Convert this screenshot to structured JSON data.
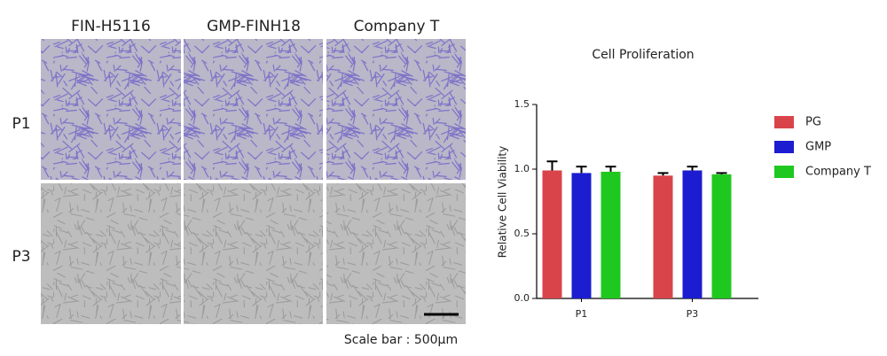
{
  "micrographs": {
    "columns": [
      "FIN-H5116",
      "GMP-FINH18",
      "Company T"
    ],
    "rows": [
      "P1",
      "P3"
    ],
    "scale_bar": "Scale bar : 500μm"
  },
  "chart_data": {
    "type": "bar",
    "title": "Cell Proliferation",
    "y_label": "Relative Cell Viability",
    "categories": [
      "P1",
      "P3"
    ],
    "series": [
      {
        "name": "PG",
        "color": "#d9444a",
        "values": [
          0.99,
          0.95
        ],
        "errors": [
          0.07,
          0.02
        ]
      },
      {
        "name": "GMP",
        "color": "#1c1cd0",
        "values": [
          0.97,
          0.99
        ],
        "errors": [
          0.05,
          0.03
        ]
      },
      {
        "name": "Company T",
        "color": "#1fc81f",
        "values": [
          0.98,
          0.96
        ],
        "errors": [
          0.04,
          0.01
        ]
      }
    ],
    "ylim": [
      0,
      1.5
    ],
    "yticks": [
      {
        "value": 0,
        "label": "0.0"
      },
      0.5,
      {
        "value": 1,
        "label": "1.0"
      },
      1.5
    ],
    "legend": "right"
  }
}
